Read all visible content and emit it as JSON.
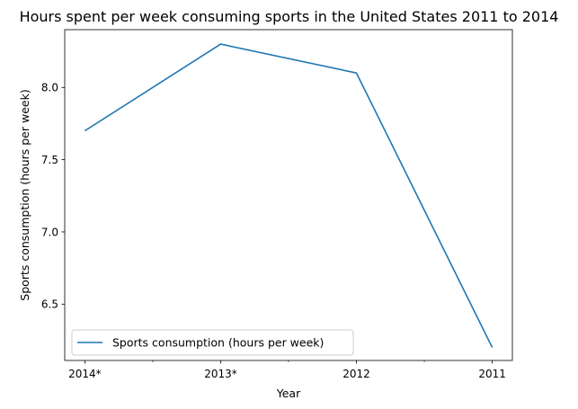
{
  "chart_data": {
    "type": "line",
    "title": "Hours spent per week consuming sports in the United States 2011 to 2014",
    "xlabel": "Year",
    "ylabel": "Sports consumption (hours per week)",
    "categories": [
      "2014*",
      "2013*",
      "2012",
      "2011"
    ],
    "series": [
      {
        "name": "Sports consumption (hours per week)",
        "values": [
          7.7,
          8.3,
          8.1,
          6.2
        ],
        "color": "#1f77b4"
      }
    ],
    "ylim": [
      6.11,
      8.4
    ],
    "yticks": [
      6.5,
      7.0,
      7.5,
      8.0
    ],
    "ytick_labels": [
      "6.5",
      "7.0",
      "7.5",
      "8.0"
    ],
    "grid": false,
    "legend_position": "lower-left"
  }
}
